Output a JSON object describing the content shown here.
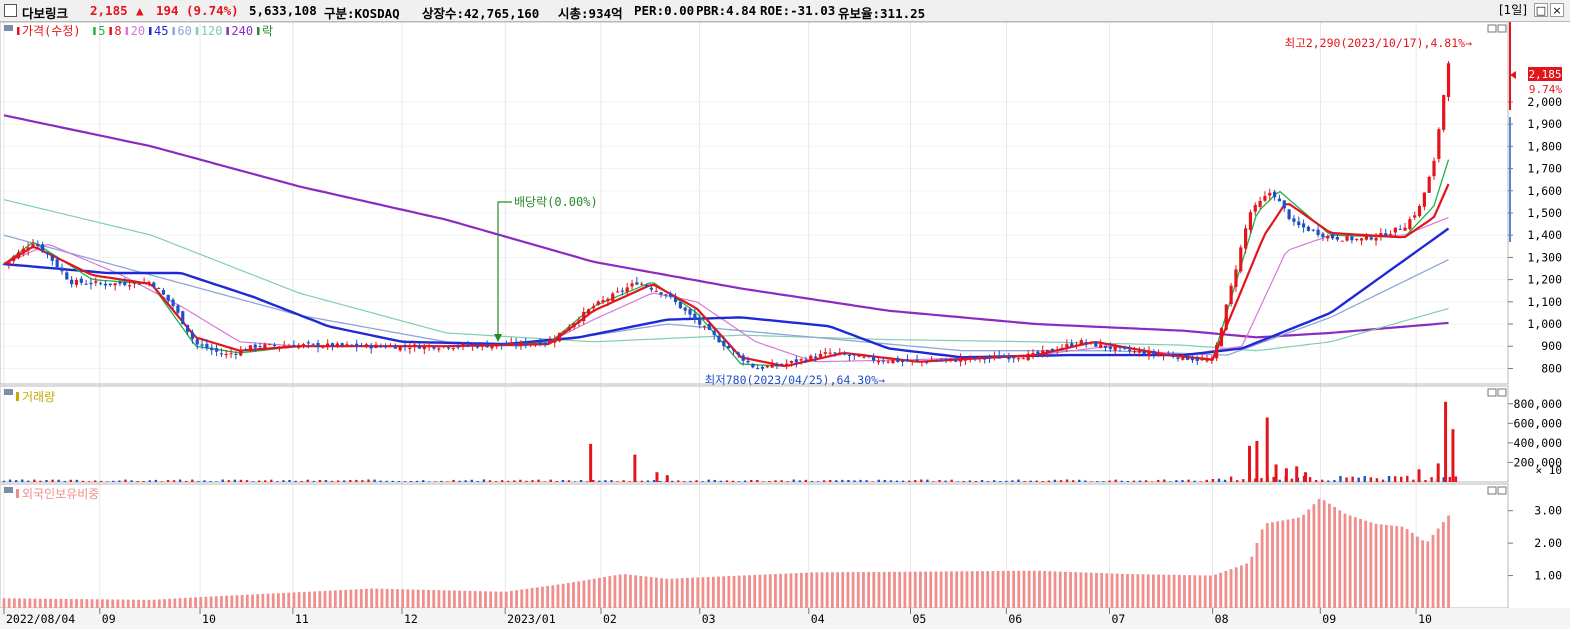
{
  "header": {
    "stock_name": "다보링크",
    "price": "2,185",
    "change_arrow": "▲",
    "change": "194",
    "change_pct": "(9.74%)",
    "volume": "5,633,108",
    "market": "구분:KOSDAQ",
    "shares": "상장수:42,765,160",
    "market_cap": "시총:934억",
    "per": "PER:0.00",
    "pbr": "PBR:4.84",
    "roe": "ROE:-31.03",
    "retention": "유보율:311.25",
    "period_button": "[1일]"
  },
  "colors": {
    "up": "#e4141c",
    "down": "#1f4fc8",
    "ma5": "#22b04a",
    "ma8": "#e4141c",
    "ma20": "#d47ad6",
    "ma45": "#1f2ad6",
    "ma60": "#8fa6da",
    "ma120": "#7fcfae",
    "ma240": "#8a2bc2",
    "ex": "#2a8a2a",
    "foreign": "#f08e8e",
    "grid": "#d8d8d8"
  },
  "price_legend": [
    {
      "label": "가격(수정)",
      "color": "#e4141c"
    },
    {
      "label": "5",
      "color": "#22b04a"
    },
    {
      "label": "8",
      "color": "#e4141c"
    },
    {
      "label": "20",
      "color": "#d47ad6"
    },
    {
      "label": "45",
      "color": "#1f2ad6"
    },
    {
      "label": "60",
      "color": "#8fa6da"
    },
    {
      "label": "120",
      "color": "#7fcfae"
    },
    {
      "label": "240",
      "color": "#8a2bc2"
    },
    {
      "label": "락",
      "color": "#2a8a2a"
    }
  ],
  "annotations": {
    "high": "최고2,290(2023/10/17),4.81%→",
    "low": "최저780(2023/04/25),64.30%→",
    "ex_dividend": "배당락(0.00%)",
    "current_price": "2,185",
    "current_pct": "9.74%"
  },
  "volume_panel": {
    "title": "거래량",
    "unit": "× 10"
  },
  "foreign_panel": {
    "title": "외국인보유비중"
  },
  "chart_data": [
    {
      "type": "candlestick",
      "title": "가격(수정)",
      "y_ticks": [
        800,
        900,
        1000,
        1100,
        1200,
        1300,
        1400,
        1500,
        1600,
        1700,
        1800,
        1900,
        2000
      ],
      "y_tick_labels": [
        "800",
        "900",
        "1,000",
        "1,100",
        "1,200",
        "1,300",
        "1,400",
        "1,500",
        "1,600",
        "1,700",
        "1,800",
        "1,900",
        "2,000"
      ],
      "ylim": [
        730,
        2360
      ],
      "x_labels": [
        {
          "label": "2022/08/04",
          "t": 0.0
        },
        {
          "label": "09",
          "t": 0.065
        },
        {
          "label": "10",
          "t": 0.133
        },
        {
          "label": "11",
          "t": 0.196
        },
        {
          "label": "12",
          "t": 0.27
        },
        {
          "label": "2023/01",
          "t": 0.34
        },
        {
          "label": "02",
          "t": 0.405
        },
        {
          "label": "03",
          "t": 0.472
        },
        {
          "label": "04",
          "t": 0.546
        },
        {
          "label": "05",
          "t": 0.615
        },
        {
          "label": "06",
          "t": 0.68
        },
        {
          "label": "07",
          "t": 0.75
        },
        {
          "label": "08",
          "t": 0.82
        },
        {
          "label": "09",
          "t": 0.893
        },
        {
          "label": "10",
          "t": 0.958
        }
      ],
      "price_anchors": [
        [
          0.0,
          1270
        ],
        [
          0.02,
          1370
        ],
        [
          0.03,
          1310
        ],
        [
          0.045,
          1190
        ],
        [
          0.07,
          1180
        ],
        [
          0.1,
          1190
        ],
        [
          0.115,
          1080
        ],
        [
          0.13,
          910
        ],
        [
          0.15,
          860
        ],
        [
          0.17,
          900
        ],
        [
          0.2,
          905
        ],
        [
          0.25,
          900
        ],
        [
          0.3,
          900
        ],
        [
          0.34,
          905
        ],
        [
          0.37,
          920
        ],
        [
          0.4,
          1080
        ],
        [
          0.43,
          1190
        ],
        [
          0.45,
          1130
        ],
        [
          0.47,
          1010
        ],
        [
          0.49,
          900
        ],
        [
          0.51,
          800
        ],
        [
          0.53,
          820
        ],
        [
          0.56,
          870
        ],
        [
          0.59,
          840
        ],
        [
          0.62,
          830
        ],
        [
          0.65,
          840
        ],
        [
          0.7,
          860
        ],
        [
          0.73,
          920
        ],
        [
          0.76,
          880
        ],
        [
          0.79,
          860
        ],
        [
          0.82,
          830
        ],
        [
          0.83,
          1100
        ],
        [
          0.845,
          1500
        ],
        [
          0.86,
          1600
        ],
        [
          0.875,
          1450
        ],
        [
          0.9,
          1390
        ],
        [
          0.92,
          1380
        ],
        [
          0.935,
          1400
        ],
        [
          0.95,
          1440
        ],
        [
          0.96,
          1520
        ],
        [
          0.97,
          1720
        ],
        [
          0.98,
          2185
        ]
      ],
      "ma_anchors": {
        "ma240": [
          [
            0.0,
            1940
          ],
          [
            0.1,
            1800
          ],
          [
            0.2,
            1620
          ],
          [
            0.3,
            1470
          ],
          [
            0.4,
            1280
          ],
          [
            0.5,
            1160
          ],
          [
            0.6,
            1060
          ],
          [
            0.7,
            1000
          ],
          [
            0.8,
            970
          ],
          [
            0.85,
            940
          ],
          [
            0.9,
            960
          ],
          [
            0.98,
            1005
          ]
        ],
        "ma120": [
          [
            0.0,
            1560
          ],
          [
            0.1,
            1400
          ],
          [
            0.2,
            1140
          ],
          [
            0.3,
            960
          ],
          [
            0.4,
            920
          ],
          [
            0.5,
            950
          ],
          [
            0.6,
            930
          ],
          [
            0.7,
            920
          ],
          [
            0.8,
            905
          ],
          [
            0.85,
            880
          ],
          [
            0.9,
            920
          ],
          [
            0.98,
            1070
          ]
        ],
        "ma60": [
          [
            0.0,
            1400
          ],
          [
            0.1,
            1220
          ],
          [
            0.2,
            1040
          ],
          [
            0.3,
            920
          ],
          [
            0.35,
            900
          ],
          [
            0.45,
            1000
          ],
          [
            0.55,
            940
          ],
          [
            0.65,
            880
          ],
          [
            0.75,
            880
          ],
          [
            0.83,
            860
          ],
          [
            0.9,
            1030
          ],
          [
            0.98,
            1290
          ]
        ],
        "ma45": [
          [
            0.0,
            1270
          ],
          [
            0.07,
            1230
          ],
          [
            0.12,
            1230
          ],
          [
            0.17,
            1120
          ],
          [
            0.22,
            990
          ],
          [
            0.27,
            920
          ],
          [
            0.34,
            910
          ],
          [
            0.39,
            940
          ],
          [
            0.45,
            1020
          ],
          [
            0.5,
            1030
          ],
          [
            0.56,
            990
          ],
          [
            0.6,
            890
          ],
          [
            0.65,
            850
          ],
          [
            0.72,
            860
          ],
          [
            0.8,
            860
          ],
          [
            0.84,
            890
          ],
          [
            0.9,
            1050
          ],
          [
            0.98,
            1430
          ]
        ],
        "ma20": [
          [
            0.0,
            1270
          ],
          [
            0.03,
            1360
          ],
          [
            0.08,
            1220
          ],
          [
            0.12,
            1080
          ],
          [
            0.16,
            920
          ],
          [
            0.2,
            900
          ],
          [
            0.3,
            900
          ],
          [
            0.37,
            920
          ],
          [
            0.4,
            1020
          ],
          [
            0.44,
            1140
          ],
          [
            0.47,
            1100
          ],
          [
            0.51,
            920
          ],
          [
            0.55,
            830
          ],
          [
            0.62,
            840
          ],
          [
            0.7,
            860
          ],
          [
            0.75,
            900
          ],
          [
            0.8,
            860
          ],
          [
            0.84,
            900
          ],
          [
            0.87,
            1330
          ],
          [
            0.9,
            1400
          ],
          [
            0.95,
            1400
          ],
          [
            0.98,
            1480
          ]
        ],
        "ma8": [
          [
            0.0,
            1270
          ],
          [
            0.02,
            1350
          ],
          [
            0.06,
            1220
          ],
          [
            0.1,
            1180
          ],
          [
            0.13,
            940
          ],
          [
            0.16,
            880
          ],
          [
            0.2,
            900
          ],
          [
            0.3,
            900
          ],
          [
            0.37,
            910
          ],
          [
            0.4,
            1060
          ],
          [
            0.44,
            1180
          ],
          [
            0.47,
            1070
          ],
          [
            0.5,
            850
          ],
          [
            0.53,
            810
          ],
          [
            0.57,
            870
          ],
          [
            0.62,
            830
          ],
          [
            0.7,
            860
          ],
          [
            0.74,
            920
          ],
          [
            0.79,
            860
          ],
          [
            0.82,
            840
          ],
          [
            0.855,
            1400
          ],
          [
            0.87,
            1550
          ],
          [
            0.9,
            1410
          ],
          [
            0.95,
            1390
          ],
          [
            0.97,
            1480
          ],
          [
            0.98,
            1630
          ]
        ],
        "ma5": [
          [
            0.0,
            1270
          ],
          [
            0.02,
            1370
          ],
          [
            0.06,
            1200
          ],
          [
            0.1,
            1180
          ],
          [
            0.13,
            900
          ],
          [
            0.16,
            870
          ],
          [
            0.2,
            900
          ],
          [
            0.3,
            900
          ],
          [
            0.37,
            915
          ],
          [
            0.4,
            1080
          ],
          [
            0.44,
            1190
          ],
          [
            0.47,
            1050
          ],
          [
            0.5,
            820
          ],
          [
            0.53,
            810
          ],
          [
            0.57,
            870
          ],
          [
            0.62,
            830
          ],
          [
            0.7,
            860
          ],
          [
            0.74,
            920
          ],
          [
            0.79,
            860
          ],
          [
            0.82,
            840
          ],
          [
            0.85,
            1500
          ],
          [
            0.865,
            1600
          ],
          [
            0.9,
            1400
          ],
          [
            0.95,
            1390
          ],
          [
            0.97,
            1530
          ],
          [
            0.98,
            1740
          ]
        ]
      }
    },
    {
      "type": "bar",
      "title": "거래량",
      "y_ticks": [
        200000,
        400000,
        600000,
        800000
      ],
      "y_tick_labels": [
        "200,000",
        "400,000",
        "600,000",
        "800,000"
      ],
      "ylim": [
        0,
        900000
      ],
      "spikes": [
        [
          0.398,
          390000
        ],
        [
          0.428,
          280000
        ],
        [
          0.443,
          100000
        ],
        [
          0.45,
          70000
        ],
        [
          0.845,
          370000
        ],
        [
          0.85,
          420000
        ],
        [
          0.857,
          660000
        ],
        [
          0.863,
          180000
        ],
        [
          0.87,
          140000
        ],
        [
          0.877,
          160000
        ],
        [
          0.883,
          100000
        ],
        [
          0.96,
          130000
        ],
        [
          0.973,
          190000
        ],
        [
          0.978,
          820000
        ],
        [
          0.983,
          540000
        ]
      ],
      "base_volume": 20000
    },
    {
      "type": "bar",
      "title": "외국인보유비중",
      "y_ticks": [
        1.0,
        2.0,
        3.0
      ],
      "y_tick_labels": [
        "1.00",
        "2.00",
        "3.00"
      ],
      "ylim": [
        0,
        3.7
      ],
      "value_anchors": [
        [
          0.0,
          0.3
        ],
        [
          0.1,
          0.25
        ],
        [
          0.13,
          0.33
        ],
        [
          0.25,
          0.6
        ],
        [
          0.34,
          0.5
        ],
        [
          0.38,
          0.75
        ],
        [
          0.42,
          1.05
        ],
        [
          0.45,
          0.9
        ],
        [
          0.5,
          1.0
        ],
        [
          0.55,
          1.1
        ],
        [
          0.62,
          1.12
        ],
        [
          0.7,
          1.15
        ],
        [
          0.76,
          1.05
        ],
        [
          0.82,
          1.0
        ],
        [
          0.845,
          1.4
        ],
        [
          0.855,
          2.6
        ],
        [
          0.88,
          2.8
        ],
        [
          0.893,
          3.4
        ],
        [
          0.91,
          2.9
        ],
        [
          0.93,
          2.6
        ],
        [
          0.95,
          2.5
        ],
        [
          0.965,
          2.0
        ],
        [
          0.98,
          2.85
        ]
      ]
    }
  ]
}
